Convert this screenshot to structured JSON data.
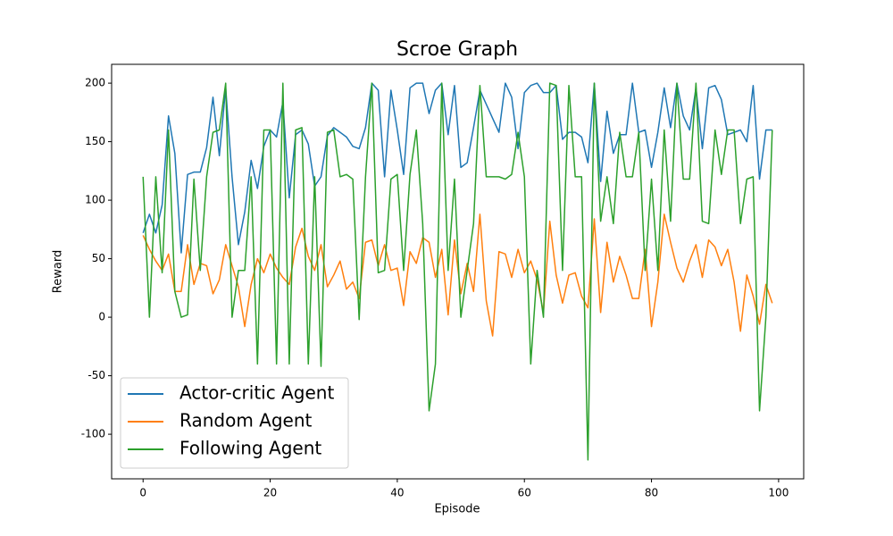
{
  "chart_data": {
    "type": "line",
    "title": "Scroe Graph",
    "x_label": "Episode",
    "y_label": "Reward",
    "x": [
      0,
      1,
      2,
      3,
      4,
      5,
      6,
      7,
      8,
      9,
      10,
      11,
      12,
      13,
      14,
      15,
      16,
      17,
      18,
      19,
      20,
      21,
      22,
      23,
      24,
      25,
      26,
      27,
      28,
      29,
      30,
      31,
      32,
      33,
      34,
      35,
      36,
      37,
      38,
      39,
      40,
      41,
      42,
      43,
      44,
      45,
      46,
      47,
      48,
      49,
      50,
      51,
      52,
      53,
      54,
      55,
      56,
      57,
      58,
      59,
      60,
      61,
      62,
      63,
      64,
      65,
      66,
      67,
      68,
      69,
      70,
      71,
      72,
      73,
      74,
      75,
      76,
      77,
      78,
      79,
      80,
      81,
      82,
      83,
      84,
      85,
      86,
      87,
      88,
      89,
      90,
      91,
      92,
      93,
      94,
      95,
      96,
      97,
      98,
      99
    ],
    "series": [
      {
        "name": "Actor-critic Agent",
        "color": "#1f77b4",
        "values": [
          72,
          88,
          72,
          96,
          172,
          140,
          55,
          122,
          124,
          124,
          145,
          188,
          138,
          196,
          120,
          62,
          90,
          134,
          110,
          146,
          160,
          154,
          184,
          102,
          156,
          160,
          148,
          112,
          120,
          155,
          162,
          158,
          154,
          146,
          144,
          162,
          200,
          194,
          120,
          194,
          160,
          122,
          196,
          200,
          200,
          174,
          194,
          200,
          156,
          198,
          128,
          132,
          162,
          194,
          182,
          170,
          158,
          200,
          188,
          144,
          192,
          198,
          200,
          192,
          192,
          198,
          152,
          158,
          158,
          154,
          132,
          200,
          116,
          176,
          140,
          156,
          156,
          200,
          158,
          160,
          128,
          158,
          196,
          162,
          200,
          172,
          160,
          196,
          144,
          196,
          198,
          186,
          156,
          158,
          160,
          150,
          198,
          118,
          160,
          160
        ]
      },
      {
        "name": "Random Agent",
        "color": "#ff7f0e",
        "values": [
          70,
          58,
          48,
          40,
          54,
          22,
          22,
          62,
          28,
          46,
          44,
          20,
          32,
          62,
          44,
          26,
          -8,
          28,
          50,
          38,
          54,
          42,
          34,
          28,
          60,
          76,
          52,
          40,
          62,
          26,
          36,
          48,
          24,
          30,
          16,
          64,
          66,
          44,
          62,
          40,
          42,
          10,
          56,
          46,
          68,
          64,
          34,
          58,
          2,
          66,
          20,
          46,
          22,
          88,
          14,
          -16,
          56,
          54,
          34,
          58,
          38,
          48,
          32,
          4,
          82,
          36,
          12,
          36,
          38,
          18,
          8,
          84,
          4,
          64,
          30,
          52,
          36,
          16,
          16,
          58,
          -8,
          30,
          88,
          64,
          42,
          30,
          48,
          62,
          34,
          66,
          60,
          44,
          58,
          30,
          -12,
          36,
          18,
          -6,
          28,
          12
        ]
      },
      {
        "name": "Following Agent",
        "color": "#2ca02c",
        "values": [
          120,
          0,
          120,
          38,
          160,
          22,
          0,
          2,
          118,
          40,
          120,
          158,
          160,
          200,
          0,
          40,
          40,
          120,
          -40,
          160,
          160,
          -40,
          200,
          -40,
          160,
          162,
          -40,
          120,
          -42,
          158,
          160,
          120,
          122,
          118,
          -2,
          120,
          200,
          38,
          40,
          118,
          122,
          40,
          122,
          160,
          80,
          -80,
          -40,
          200,
          40,
          118,
          0,
          40,
          80,
          198,
          120,
          120,
          120,
          118,
          122,
          158,
          120,
          -40,
          40,
          0,
          200,
          198,
          40,
          198,
          120,
          120,
          -122,
          200,
          82,
          120,
          80,
          158,
          120,
          120,
          158,
          40,
          118,
          40,
          160,
          82,
          200,
          118,
          118,
          200,
          82,
          80,
          160,
          122,
          160,
          160,
          80,
          118,
          120,
          -80,
          0,
          160
        ]
      }
    ],
    "xlim": [
      -4.95,
      103.95
    ],
    "ylim": [
      -138.1,
      216.1
    ],
    "xticks": [
      0,
      20,
      40,
      60,
      80,
      100
    ],
    "yticks": [
      -100,
      -50,
      0,
      50,
      100,
      150,
      200
    ],
    "grid": false,
    "legend": "lower left"
  }
}
